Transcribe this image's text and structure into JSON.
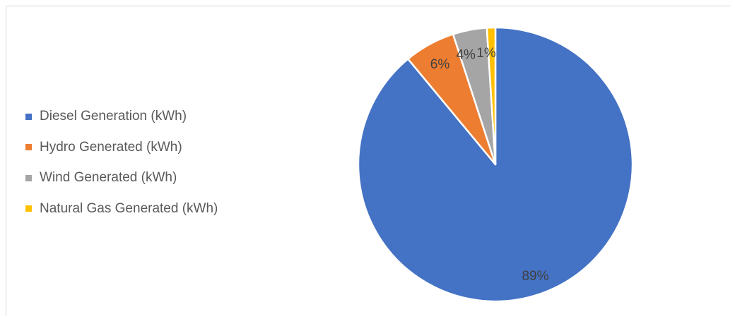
{
  "chart_data": {
    "type": "pie",
    "title": "",
    "categories": [
      "Diesel Generation (kWh)",
      "Hydro Generated (kWh)",
      "Wind Generated (kWh)",
      "Natural Gas Generated (kWh)"
    ],
    "values": [
      89,
      6,
      4,
      1
    ],
    "data_labels": [
      "89%",
      "6%",
      "4%",
      "1%"
    ],
    "colors": [
      "#4472c4",
      "#ed7d31",
      "#a5a5a5",
      "#ffc000"
    ],
    "legend": "left"
  }
}
